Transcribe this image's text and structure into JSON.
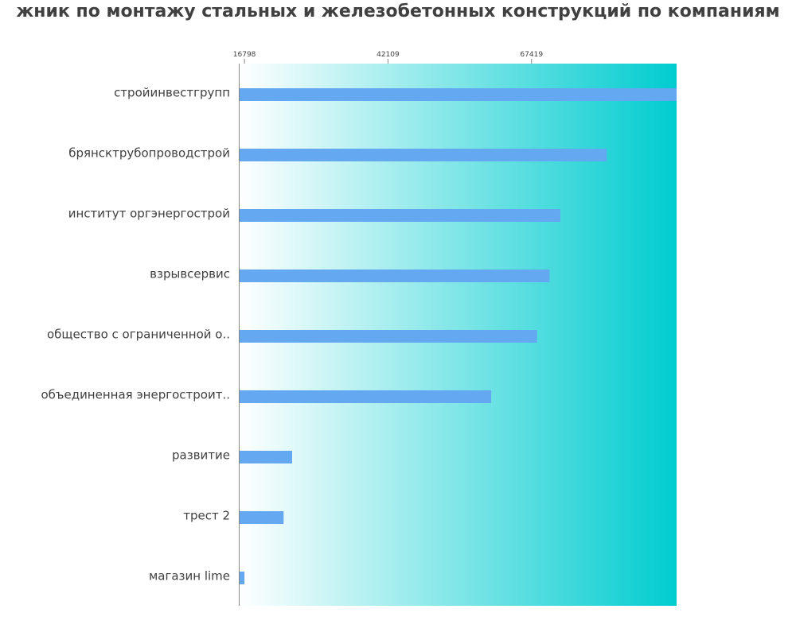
{
  "chart_data": {
    "type": "bar",
    "orientation": "horizontal",
    "title": "жник по монтажу стальных и железобетонных конструкций по компаниям",
    "xlabel": "",
    "ylabel": "",
    "categories": [
      "стройинвестгрупп",
      "брянсктрубопроводстрой",
      "институт оргэнергострой",
      "взрывсервис",
      "общество с ограниченной о..",
      "объединенная энергостроит..",
      "развитие",
      "трест 2",
      "магазин lime"
    ],
    "values": [
      93000,
      80700,
      72500,
      70600,
      68400,
      60300,
      25200,
      23700,
      16800
    ],
    "xlim": [
      15800,
      93000
    ],
    "xticks": [
      16798,
      42109,
      67419
    ],
    "xtick_labels": [
      "16798",
      "42109",
      "67419"
    ],
    "grid": false,
    "legend": "none",
    "colors": {
      "bar": "#64a8f2",
      "background_start": "#ffffff",
      "background_end": "#00cccf",
      "text": "#404040",
      "axis": "#888888"
    }
  }
}
